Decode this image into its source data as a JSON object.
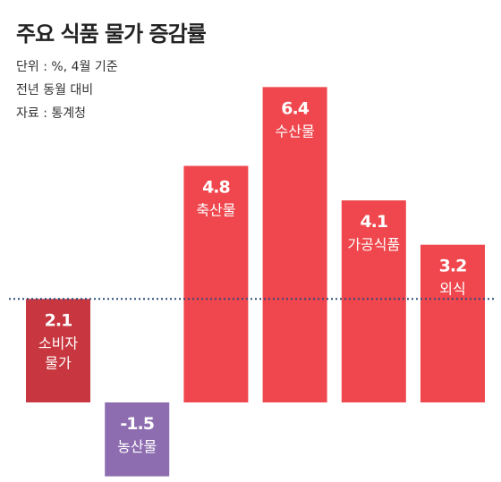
{
  "header": {
    "title": "주요 식품 물가 증감률",
    "notes": [
      "단위 : %, 4월 기준",
      "전년 동월 대비",
      "자료 : 통계청"
    ]
  },
  "colors": {
    "cpi_bar": "#c8373f",
    "positive_bar": "#ef474d",
    "negative_bar": "#8d6db0",
    "reference_line": "#2d4a7a",
    "label_text": "#ffffff"
  },
  "chart_data": {
    "type": "bar",
    "title": "주요 식품 물가 증감률",
    "unit": "%",
    "categories": [
      "소비자 물가",
      "농산물",
      "축산물",
      "수산물",
      "가공식품",
      "외식"
    ],
    "category_lines": [
      [
        "소비자",
        "물가"
      ],
      [
        "농산물"
      ],
      [
        "축산물"
      ],
      [
        "수산물"
      ],
      [
        "가공식품"
      ],
      [
        "외식"
      ]
    ],
    "values": [
      2.1,
      -1.5,
      4.8,
      6.4,
      4.1,
      3.2
    ],
    "value_labels": [
      "2.1",
      "-1.5",
      "4.8",
      "6.4",
      "4.1",
      "3.2"
    ],
    "reference_line": {
      "value": 2.1,
      "style": "dotted"
    },
    "ylim": [
      -1.5,
      6.4
    ],
    "grid": false,
    "legend": "none"
  }
}
